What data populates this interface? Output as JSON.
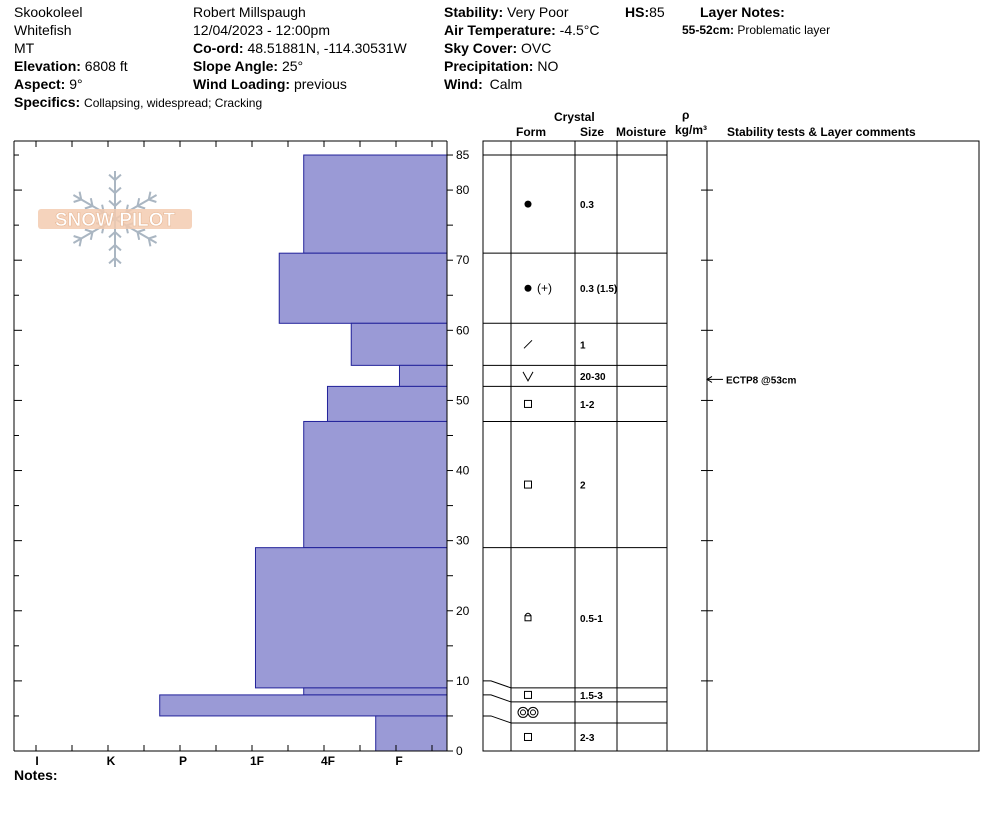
{
  "header": {
    "location": "Skookoleel",
    "region": "Whitefish",
    "state": "MT",
    "elevation_label": "Elevation:",
    "elevation_value": "6808 ft",
    "aspect_label": "Aspect:",
    "aspect_value": "9°",
    "specifics_label": "Specifics:",
    "specifics_value": "Collapsing, widespread; Cracking",
    "observer": "Robert Millspaugh",
    "datetime": "12/04/2023 - 12:00pm",
    "coord_label": "Co-ord:",
    "coord_value": "48.51881N, -114.30531W",
    "slope_label": "Slope Angle:",
    "slope_value": "25°",
    "wind_loading_label": "Wind Loading:",
    "wind_loading_value": "previous",
    "stability_label": "Stability:",
    "stability_value": "Very Poor",
    "air_temp_label": "Air Temperature:",
    "air_temp_value": "-4.5°C",
    "sky_label": "Sky Cover:",
    "sky_value": "OVC",
    "precip_label": "Precipitation:",
    "precip_value": "NO",
    "wind_label": "Wind:",
    "wind_value": "Calm",
    "hs_label": "HS:",
    "hs_value": "85",
    "layer_notes_label": "Layer Notes:",
    "layer_notes_range": "55-52cm:",
    "layer_notes_text": "Problematic layer"
  },
  "logo_text": "SNOW PILOT",
  "notes_label": "Notes:",
  "columns": {
    "crystal": "Crystal",
    "form": "Form",
    "size": "Size",
    "moisture": "Moisture",
    "rho": "ρ",
    "density_unit": "kg/m³",
    "comments": "Stability tests & Layer comments"
  },
  "chart_data": {
    "type": "bar",
    "orientation": "horizontal",
    "y_label": "",
    "ylim": [
      0,
      85
    ],
    "y_ticks": [
      0,
      10,
      20,
      30,
      40,
      50,
      60,
      70,
      80,
      85
    ],
    "hardness_categories": [
      "I",
      "K",
      "P",
      "1F",
      "4F",
      "F"
    ],
    "hardness_scale": [
      "F",
      "4F",
      "1F",
      "P",
      "K",
      "I"
    ],
    "layers": [
      {
        "top": 85,
        "bottom": 71,
        "hardness_index": 1.66
      },
      {
        "top": 71,
        "bottom": 61,
        "hardness_index": 2.0
      },
      {
        "top": 61,
        "bottom": 55,
        "hardness_index": 1.0
      },
      {
        "top": 55,
        "bottom": 52,
        "hardness_index": 0.33
      },
      {
        "top": 52,
        "bottom": 47,
        "hardness_index": 1.33
      },
      {
        "top": 47,
        "bottom": 29,
        "hardness_index": 1.66
      },
      {
        "top": 29,
        "bottom": 9,
        "hardness_index": 2.33
      },
      {
        "top": 9,
        "bottom": 8,
        "hardness_index": 1.66
      },
      {
        "top": 8,
        "bottom": 5,
        "hardness_index": 3.66
      },
      {
        "top": 5,
        "bottom": 0,
        "hardness_index": 0.66
      }
    ],
    "grain_layers": [
      {
        "top": 85,
        "bottom": 71,
        "form": "round",
        "size": "0.3"
      },
      {
        "top": 71,
        "bottom": 61,
        "form": "round-plus",
        "size": "0.3 (1.5)"
      },
      {
        "top": 61,
        "bottom": 55,
        "form": "slash",
        "size": "1"
      },
      {
        "top": 55,
        "bottom": 52,
        "form": "depth-hoar",
        "size": "20-30"
      },
      {
        "top": 52,
        "bottom": 47,
        "form": "square",
        "size": "1-2"
      },
      {
        "top": 47,
        "bottom": 29,
        "form": "square",
        "size": "2"
      },
      {
        "top": 29,
        "bottom": 9,
        "form": "hoar-small",
        "size": "0.5-1"
      },
      {
        "top": 9,
        "bottom": 7,
        "form": "square",
        "size": "1.5-3"
      },
      {
        "top": 7,
        "bottom": 4,
        "form": "melt-form",
        "size": ""
      },
      {
        "top": 4,
        "bottom": 0,
        "form": "square",
        "size": "2-3"
      }
    ],
    "stability_tests": [
      {
        "depth": 53,
        "label": "ECTP8 @53cm"
      }
    ]
  }
}
